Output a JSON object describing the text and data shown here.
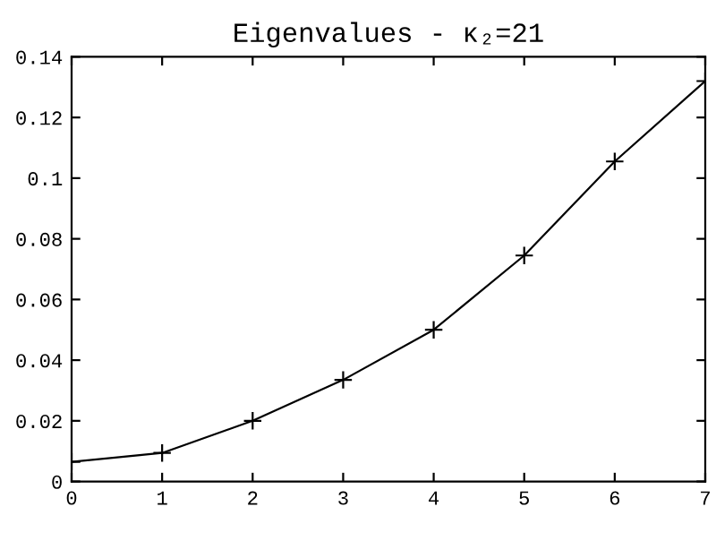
{
  "chart_data": {
    "type": "line",
    "title": "Eigenvalues - κ₂=21",
    "x": [
      0,
      1,
      2,
      3,
      4,
      5,
      6,
      7
    ],
    "series": [
      {
        "color": "#000000",
        "values": [
          0.0065,
          0.0094,
          0.02,
          0.0335,
          0.05,
          0.0745,
          0.1055,
          0.132
        ]
      }
    ],
    "xlim": [
      0,
      7
    ],
    "xticks": [
      0,
      1,
      2,
      3,
      4,
      5,
      6,
      7
    ],
    "ylim": [
      0,
      0.14
    ],
    "yticks": [
      0,
      0.02,
      0.04,
      0.06,
      0.08,
      0.1,
      0.12,
      0.14
    ],
    "marker": "cross",
    "line_style": "solid",
    "grid": false,
    "legend": false
  }
}
